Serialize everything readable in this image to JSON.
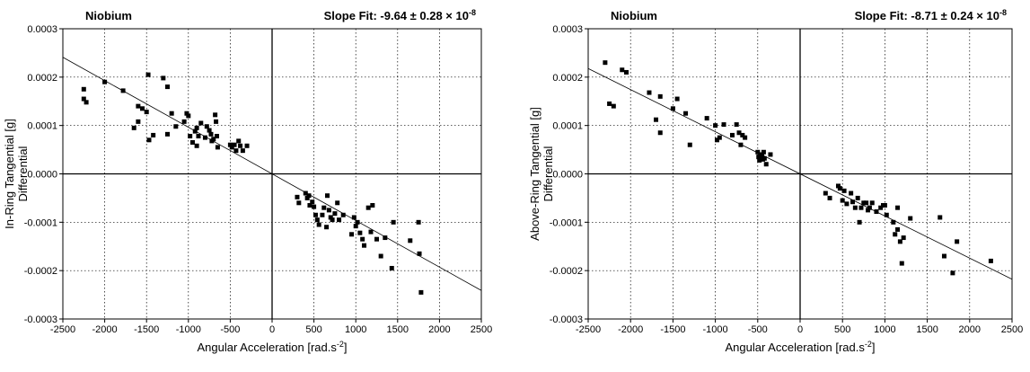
{
  "chart_data": [
    {
      "type": "scatter",
      "title": "Niobium",
      "fit_text": "Slope Fit: -9.64 ± 0.28 × 10",
      "fit_exponent": "-8",
      "xlabel": "Angular Acceleration [rad.s",
      "xlabel_sup": "-2",
      "xlabel_end": "]",
      "ylabel_line1": "In-Ring Tangential [g]",
      "ylabel_line2": "Differential",
      "xlim": [
        -2500,
        2500
      ],
      "ylim": [
        -0.0003,
        0.0003
      ],
      "xticks": [
        -2500,
        -2000,
        -1500,
        -1000,
        -500,
        0,
        500,
        1000,
        1500,
        2000,
        2500
      ],
      "xtick_labels": [
        "-2500",
        "-2000",
        "-1500",
        "-1000",
        "-500",
        "0",
        "500",
        "1000",
        "1500",
        "2000",
        "2500"
      ],
      "yticks": [
        -0.0003,
        -0.0002,
        -0.0001,
        0,
        0.0001,
        0.0002,
        0.0003
      ],
      "ytick_labels": [
        "-0.0003",
        "-0.0002",
        "-0.0001",
        "0.0000",
        "0.0001",
        "0.0002",
        "0.0003"
      ],
      "grid": true,
      "fit_line": {
        "slope": -9.64e-08,
        "intercept": 0
      },
      "points": [
        [
          -2250,
          0.000175
        ],
        [
          -2250,
          0.000155
        ],
        [
          -2220,
          0.000148
        ],
        [
          -2000,
          0.00019
        ],
        [
          -1780,
          0.000172
        ],
        [
          -1650,
          9.5e-05
        ],
        [
          -1600,
          0.00014
        ],
        [
          -1600,
          0.000108
        ],
        [
          -1550,
          0.000135
        ],
        [
          -1500,
          0.000128
        ],
        [
          -1480,
          0.000205
        ],
        [
          -1470,
          7e-05
        ],
        [
          -1420,
          8e-05
        ],
        [
          -1300,
          0.000198
        ],
        [
          -1250,
          0.00018
        ],
        [
          -1250,
          8.2e-05
        ],
        [
          -1200,
          0.000125
        ],
        [
          -1150,
          9.8e-05
        ],
        [
          -1050,
          0.000108
        ],
        [
          -1020,
          0.000125
        ],
        [
          -1000,
          0.00012
        ],
        [
          -980,
          7.8e-05
        ],
        [
          -950,
          6.5e-05
        ],
        [
          -920,
          8.8e-05
        ],
        [
          -900,
          5.8e-05
        ],
        [
          -900,
          9.5e-05
        ],
        [
          -880,
          7.8e-05
        ],
        [
          -850,
          0.000105
        ],
        [
          -800,
          7.5e-05
        ],
        [
          -780,
          9.8e-05
        ],
        [
          -750,
          9e-05
        ],
        [
          -730,
          8.2e-05
        ],
        [
          -720,
          6.8e-05
        ],
        [
          -700,
          7.2e-05
        ],
        [
          -680,
          0.000122
        ],
        [
          -670,
          0.000108
        ],
        [
          -660,
          7.8e-05
        ],
        [
          -650,
          5.5e-05
        ],
        [
          -500,
          6e-05
        ],
        [
          -480,
          5.5e-05
        ],
        [
          -450,
          6e-05
        ],
        [
          -430,
          4.8e-05
        ],
        [
          -400,
          6.8e-05
        ],
        [
          -380,
          5.8e-05
        ],
        [
          -350,
          4.8e-05
        ],
        [
          -300,
          5.8e-05
        ],
        [
          300,
          -4.8e-05
        ],
        [
          320,
          -6e-05
        ],
        [
          400,
          -4e-05
        ],
        [
          420,
          -5e-05
        ],
        [
          440,
          -4.5e-05
        ],
        [
          450,
          -6.5e-05
        ],
        [
          480,
          -5.8e-05
        ],
        [
          500,
          -6.8e-05
        ],
        [
          520,
          -8.5e-05
        ],
        [
          540,
          -9.5e-05
        ],
        [
          560,
          -0.000105
        ],
        [
          600,
          -8.5e-05
        ],
        [
          620,
          -7e-05
        ],
        [
          650,
          -0.00011
        ],
        [
          660,
          -4.5e-05
        ],
        [
          680,
          -7.5e-05
        ],
        [
          700,
          -9e-05
        ],
        [
          720,
          -9.5e-05
        ],
        [
          750,
          -8.2e-05
        ],
        [
          780,
          -6e-05
        ],
        [
          800,
          -9.5e-05
        ],
        [
          850,
          -8.5e-05
        ],
        [
          950,
          -0.000125
        ],
        [
          980,
          -9e-05
        ],
        [
          1000,
          -0.000108
        ],
        [
          1020,
          -0.0001
        ],
        [
          1050,
          -0.000122
        ],
        [
          1080,
          -0.000135
        ],
        [
          1100,
          -0.000148
        ],
        [
          1150,
          -7e-05
        ],
        [
          1180,
          -0.00012
        ],
        [
          1200,
          -6.5e-05
        ],
        [
          1250,
          -0.000135
        ],
        [
          1300,
          -0.00017
        ],
        [
          1350,
          -0.000132
        ],
        [
          1430,
          -0.000195
        ],
        [
          1450,
          -0.0001
        ],
        [
          1650,
          -0.000138
        ],
        [
          1750,
          -0.0001
        ],
        [
          1760,
          -0.000165
        ],
        [
          1780,
          -0.000245
        ]
      ]
    },
    {
      "type": "scatter",
      "title": "Niobium",
      "fit_text": "Slope Fit: -8.71 ± 0.24 × 10",
      "fit_exponent": "-8",
      "xlabel": "Angular Acceleration [rad.s",
      "xlabel_sup": "-2",
      "xlabel_end": "]",
      "ylabel_line1": "Above-Ring Tangential [g]",
      "ylabel_line2": "Differential",
      "xlim": [
        -2500,
        2500
      ],
      "ylim": [
        -0.0003,
        0.0003
      ],
      "xticks": [
        -2500,
        -2000,
        -1500,
        -1000,
        -500,
        0,
        500,
        1000,
        1500,
        2000,
        2500
      ],
      "xtick_labels": [
        "-2500",
        "-2000",
        "-1500",
        "-1000",
        "-500",
        "0",
        "500",
        "1000",
        "1500",
        "2000",
        "2500"
      ],
      "yticks": [
        -0.0003,
        -0.0002,
        -0.0001,
        0,
        0.0001,
        0.0002,
        0.0003
      ],
      "ytick_labels": [
        "-0.0003",
        "-0.0002",
        "-0.0001",
        "0.0000",
        "0.0001",
        "0.0002",
        "0.0003"
      ],
      "grid": true,
      "fit_line": {
        "slope": -8.71e-08,
        "intercept": 0
      },
      "points": [
        [
          -2300,
          0.00023
        ],
        [
          -2250,
          0.000145
        ],
        [
          -2200,
          0.00014
        ],
        [
          -2100,
          0.000215
        ],
        [
          -2050,
          0.00021
        ],
        [
          -1780,
          0.000168
        ],
        [
          -1700,
          0.000112
        ],
        [
          -1650,
          8.5e-05
        ],
        [
          -1650,
          0.00016
        ],
        [
          -1500,
          0.000135
        ],
        [
          -1450,
          0.000155
        ],
        [
          -1350,
          0.000125
        ],
        [
          -1300,
          6e-05
        ],
        [
          -1100,
          0.000115
        ],
        [
          -1000,
          0.0001
        ],
        [
          -980,
          7e-05
        ],
        [
          -950,
          7.5e-05
        ],
        [
          -900,
          0.000102
        ],
        [
          -800,
          8e-05
        ],
        [
          -750,
          0.000102
        ],
        [
          -720,
          8.5e-05
        ],
        [
          -700,
          6e-05
        ],
        [
          -680,
          8e-05
        ],
        [
          -650,
          7.5e-05
        ],
        [
          -500,
          4.5e-05
        ],
        [
          -490,
          3.5e-05
        ],
        [
          -480,
          2.8e-05
        ],
        [
          -470,
          4e-05
        ],
        [
          -450,
          3.8e-05
        ],
        [
          -440,
          3e-05
        ],
        [
          -430,
          4.5e-05
        ],
        [
          -420,
          3.2e-05
        ],
        [
          -400,
          2e-05
        ],
        [
          -350,
          4e-05
        ],
        [
          300,
          -4e-05
        ],
        [
          350,
          -5e-05
        ],
        [
          450,
          -2.5e-05
        ],
        [
          470,
          -3e-05
        ],
        [
          500,
          -5.5e-05
        ],
        [
          520,
          -3.5e-05
        ],
        [
          550,
          -6.2e-05
        ],
        [
          600,
          -4e-05
        ],
        [
          620,
          -5.8e-05
        ],
        [
          650,
          -7e-05
        ],
        [
          680,
          -5e-05
        ],
        [
          700,
          -0.0001
        ],
        [
          720,
          -7e-05
        ],
        [
          750,
          -6e-05
        ],
        [
          780,
          -6e-05
        ],
        [
          800,
          -7.5e-05
        ],
        [
          820,
          -7e-05
        ],
        [
          850,
          -6e-05
        ],
        [
          900,
          -7.8e-05
        ],
        [
          950,
          -7e-05
        ],
        [
          980,
          -6.5e-05
        ],
        [
          1000,
          -6.5e-05
        ],
        [
          1020,
          -8.5e-05
        ],
        [
          1100,
          -0.0001
        ],
        [
          1120,
          -0.000125
        ],
        [
          1150,
          -7e-05
        ],
        [
          1150,
          -0.000115
        ],
        [
          1180,
          -0.00014
        ],
        [
          1200,
          -0.000185
        ],
        [
          1220,
          -0.000132
        ],
        [
          1300,
          -9.2e-05
        ],
        [
          1650,
          -9e-05
        ],
        [
          1700,
          -0.00017
        ],
        [
          1800,
          -0.000205
        ],
        [
          1850,
          -0.00014
        ],
        [
          2250,
          -0.00018
        ]
      ]
    }
  ]
}
